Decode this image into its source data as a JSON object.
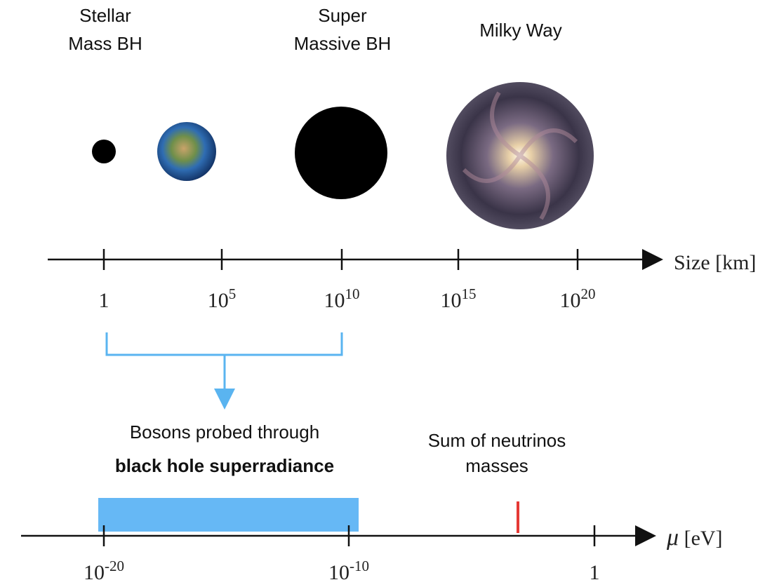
{
  "objects": [
    {
      "label_lines": [
        "Stellar",
        "Mass BH"
      ]
    },
    {
      "label_lines": [
        "Super",
        "Massive BH"
      ]
    },
    {
      "label_lines": [
        "Milky Way"
      ]
    }
  ],
  "size_axis": {
    "label": "Size [km]",
    "ticks": [
      {
        "base": "1"
      },
      {
        "base": "10",
        "exp": "5"
      },
      {
        "base": "10",
        "exp": "10"
      },
      {
        "base": "10",
        "exp": "15"
      },
      {
        "base": "10",
        "exp": "20"
      }
    ]
  },
  "mass_axis": {
    "label_symbol": "μ",
    "label_unit": "[eV]",
    "ticks": [
      {
        "base": "10",
        "exp": "-20"
      },
      {
        "base": "10",
        "exp": "-10"
      },
      {
        "base": "1"
      }
    ]
  },
  "superradiance": {
    "line1": "Bosons probed through",
    "line2": "black hole superradiance"
  },
  "neutrinos": {
    "line1": "Sum of neutrinos",
    "line2": "masses"
  }
}
